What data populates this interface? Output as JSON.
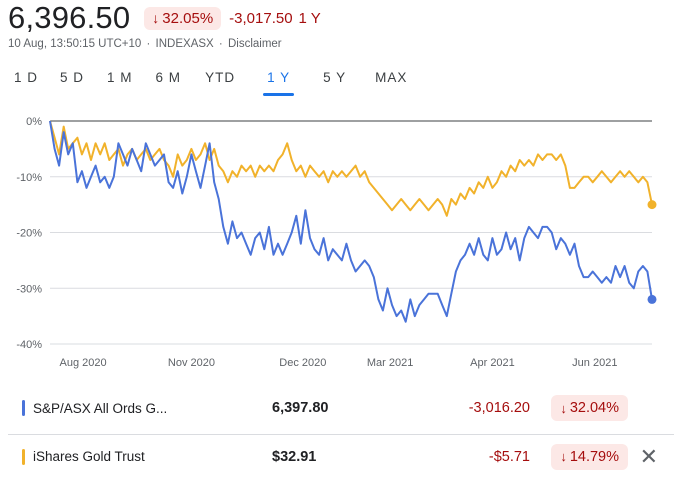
{
  "header": {
    "price": "6,396.50",
    "percent_change": "32.05%",
    "change": "-3,017.50",
    "period": "1 Y"
  },
  "subline": {
    "timestamp": "10 Aug, 13:50:15 UTC+10",
    "exchange": "INDEXASX",
    "disclaimer": "Disclaimer"
  },
  "tabs": [
    {
      "label": "1 D",
      "active": false
    },
    {
      "label": "5 D",
      "active": false
    },
    {
      "label": "1 M",
      "active": false
    },
    {
      "label": "6 M",
      "active": false
    },
    {
      "label": "YTD",
      "active": false
    },
    {
      "label": "1 Y",
      "active": true
    },
    {
      "label": "5 Y",
      "active": false
    },
    {
      "label": "MAX",
      "active": false
    }
  ],
  "colors": {
    "blue": "#4a73d9",
    "gold": "#f1b22b",
    "negative": "#a50e0e",
    "negative_bg": "#fce8e6",
    "accent": "#1a73e8"
  },
  "chart_data": {
    "type": "line",
    "ylabel": "",
    "ylim": [
      -40,
      0
    ],
    "y_ticks": [
      "0%",
      "-10%",
      "-20%",
      "-30%",
      "-40%"
    ],
    "y_tick_values": [
      0,
      -10,
      -20,
      -30,
      -40
    ],
    "x_ticks": [
      "Aug 2020",
      "Nov 2020",
      "Dec 2020",
      "Mar 2021",
      "Apr 2021",
      "Jun 2021"
    ],
    "x_tick_positions": [
      0.055,
      0.235,
      0.42,
      0.565,
      0.735,
      0.905
    ],
    "grid": true,
    "series": [
      {
        "name": "S&P/ASX All Ords G...",
        "color": "#4a73d9",
        "values": [
          0,
          -5,
          -8,
          -2,
          -6,
          -4,
          -11,
          -9,
          -12,
          -10,
          -8,
          -11,
          -10,
          -12,
          -10,
          -4,
          -6,
          -8,
          -5,
          -7,
          -9,
          -4,
          -6,
          -8,
          -7,
          -6,
          -11,
          -12,
          -9,
          -13,
          -10,
          -6,
          -9,
          -12,
          -8,
          -4,
          -11,
          -14,
          -19,
          -22,
          -18,
          -21,
          -20,
          -22,
          -24,
          -21,
          -20,
          -23,
          -19,
          -24,
          -22,
          -24,
          -22,
          -20,
          -17,
          -22,
          -16,
          -21,
          -23,
          -24,
          -21,
          -25,
          -23,
          -24,
          -25,
          -22,
          -25,
          -27,
          -26,
          -25,
          -26,
          -28,
          -32,
          -34,
          -30,
          -33,
          -35,
          -34,
          -36,
          -32,
          -35,
          -33,
          -32,
          -31,
          -31,
          -31,
          -33,
          -35,
          -31,
          -27,
          -25,
          -24,
          -22,
          -24,
          -21,
          -24,
          -25,
          -21,
          -24,
          -23,
          -20,
          -23,
          -21,
          -25,
          -21,
          -19,
          -20,
          -21,
          -19,
          -19,
          -20,
          -23,
          -21,
          -22,
          -24,
          -22,
          -26,
          -28,
          -28,
          -27,
          -28,
          -29,
          -28,
          -29,
          -26,
          -28,
          -26,
          -29,
          -30,
          -27,
          -26,
          -27,
          -32
        ]
      },
      {
        "name": "iShares Gold Trust",
        "color": "#f1b22b",
        "values": [
          0,
          -3,
          -6,
          -1,
          -5,
          -4,
          -3,
          -6,
          -4,
          -7,
          -4,
          -6,
          -4,
          -7,
          -6,
          -5,
          -8,
          -6,
          -5,
          -7,
          -6,
          -5,
          -7,
          -6,
          -5,
          -7,
          -8,
          -10,
          -6,
          -8,
          -7,
          -5,
          -7,
          -6,
          -4,
          -7,
          -5,
          -8,
          -9,
          -11,
          -9,
          -10,
          -8,
          -9,
          -8,
          -10,
          -8,
          -9,
          -8,
          -9,
          -7,
          -6,
          -4,
          -7,
          -9,
          -8,
          -10,
          -8,
          -9,
          -10,
          -9,
          -11,
          -9,
          -10,
          -9,
          -10,
          -9,
          -8,
          -10,
          -9,
          -11,
          -12,
          -13,
          -14,
          -15,
          -16,
          -15,
          -14,
          -15,
          -16,
          -15,
          -14,
          -15,
          -16,
          -15,
          -14,
          -15,
          -17,
          -14,
          -15,
          -13,
          -14,
          -12,
          -13,
          -11,
          -12,
          -10,
          -12,
          -11,
          -9,
          -10,
          -8,
          -9,
          -7,
          -8,
          -7,
          -8,
          -6,
          -7,
          -6,
          -6,
          -7,
          -6,
          -8,
          -12,
          -12,
          -11,
          -10,
          -10,
          -11,
          -10,
          -9,
          -10,
          -11,
          -10,
          -9,
          -10,
          -9,
          -10,
          -11,
          -10,
          -11,
          -15
        ]
      }
    ]
  },
  "comparisons": [
    {
      "name": "S&P/ASX All Ords G...",
      "value": "6,397.80",
      "change": "-3,016.20",
      "percent": "32.04%",
      "color": "#4a73d9",
      "removable": false
    },
    {
      "name": "iShares Gold Trust",
      "value": "$32.91",
      "change": "-$5.71",
      "percent": "14.79%",
      "color": "#f1b22b",
      "removable": true
    }
  ]
}
